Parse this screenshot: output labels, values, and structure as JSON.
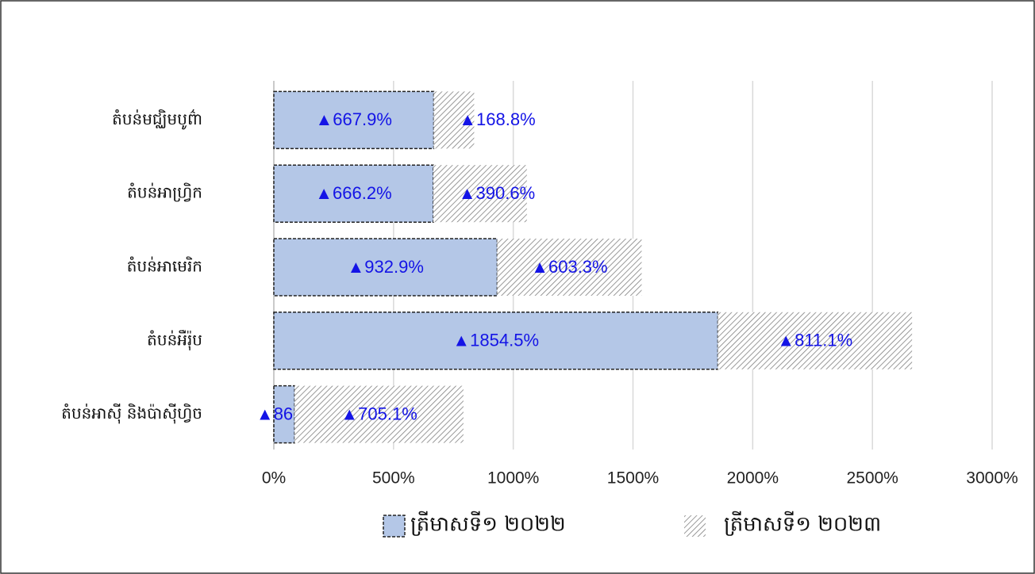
{
  "chart_data": {
    "type": "stacked_barh",
    "categories": [
      "តំបន់មជ្ឈិមបូព៌ា",
      "តំបន់អាហ្វ្រិក",
      "តំបន់អាមេរិក",
      "តំបន់អឺរ៉ុប",
      "តំបន់អាស៊ី និងប៉ាស៊ីហ្វិច"
    ],
    "series": [
      {
        "name": "ត្រីមាសទី១ ២០២២",
        "color": "#b4c7e7",
        "values": [
          667.9,
          666.2,
          932.9,
          1854.5,
          86.9
        ],
        "value_labels": [
          "▲667.9%",
          "▲666.2%",
          "▲932.9%",
          "▲1854.5%",
          "▲86.9%"
        ]
      },
      {
        "name": "ត្រីមាសទី១ ២០២៣",
        "color": "#7f7f7f",
        "values": [
          168.8,
          390.6,
          603.3,
          811.1,
          705.1
        ],
        "value_labels": [
          "▲168.8%",
          "▲390.6%",
          "▲603.3%",
          "▲811.1%",
          "▲705.1%"
        ]
      }
    ],
    "xlim": [
      0,
      3000
    ],
    "xticks": [
      {
        "value": 0,
        "label": "0%"
      },
      {
        "value": 500,
        "label": "500%"
      },
      {
        "value": 1000,
        "label": "1000%"
      },
      {
        "value": 1500,
        "label": "1500%"
      },
      {
        "value": 2000,
        "label": "2000%"
      },
      {
        "value": 2500,
        "label": "2500%"
      },
      {
        "value": 3000,
        "label": "3000%"
      }
    ],
    "grid": true,
    "legend": "bottom"
  }
}
